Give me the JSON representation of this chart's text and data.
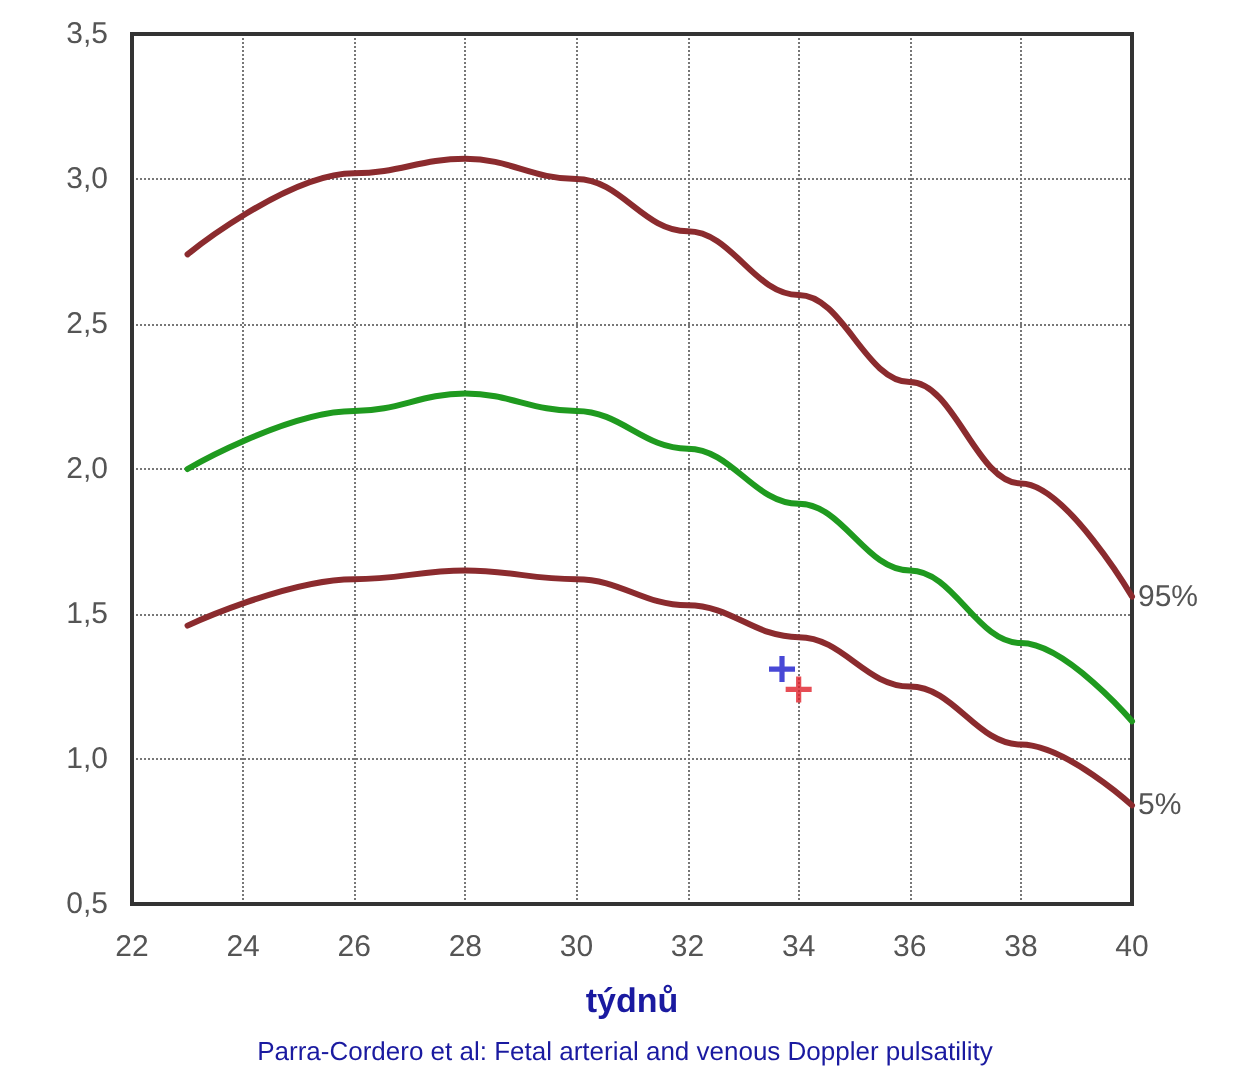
{
  "chart_data": {
    "type": "line",
    "xlabel": "týdnů",
    "x": [
      23,
      26,
      28,
      30,
      32,
      34,
      36,
      38,
      40
    ],
    "series": [
      {
        "color": "#8b2b2e",
        "values": [
          2.74,
          3.02,
          3.07,
          3.0,
          2.82,
          2.6,
          2.3,
          1.95,
          1.56
        ]
      },
      {
        "color": "#1f9a1f",
        "values": [
          2.0,
          2.2,
          2.26,
          2.2,
          2.07,
          1.88,
          1.65,
          1.4,
          1.13
        ]
      },
      {
        "color": "#8b2b2e",
        "values": [
          1.46,
          1.62,
          1.65,
          1.62,
          1.53,
          1.42,
          1.25,
          1.05,
          0.84
        ]
      },
      {
        "type": "scatter",
        "color": "#1a1acc",
        "marker": "cross",
        "x": [
          33.7
        ],
        "values": [
          1.31
        ]
      },
      {
        "type": "scatter",
        "color": "#e0202a",
        "marker": "cross",
        "x": [
          34.0
        ],
        "values": [
          1.24
        ]
      }
    ],
    "xlim": [
      22,
      40
    ],
    "xticks": [
      22,
      24,
      26,
      28,
      30,
      32,
      34,
      36,
      38,
      40
    ],
    "ylim": [
      0.5,
      3.5
    ],
    "yticks": [
      {
        "value": 0.5,
        "label": "0,5"
      },
      {
        "value": 1.0,
        "label": "1,0"
      },
      {
        "value": 1.5,
        "label": "1,5"
      },
      {
        "value": 2.0,
        "label": "2,0"
      },
      {
        "value": 2.5,
        "label": "2,5"
      },
      {
        "value": 3.0,
        "label": "3,0"
      },
      {
        "value": 3.5,
        "label": "3,5"
      }
    ],
    "grid": true,
    "marker": "none",
    "line_style": "solid",
    "annotations": [
      {
        "text": "95%",
        "x": 40,
        "y": 1.56
      },
      {
        "text": "5%",
        "x": 40,
        "y": 0.84
      },
      "Parra-Cordero et al: Fetal arterial and venous Doppler pulsatility"
    ]
  }
}
